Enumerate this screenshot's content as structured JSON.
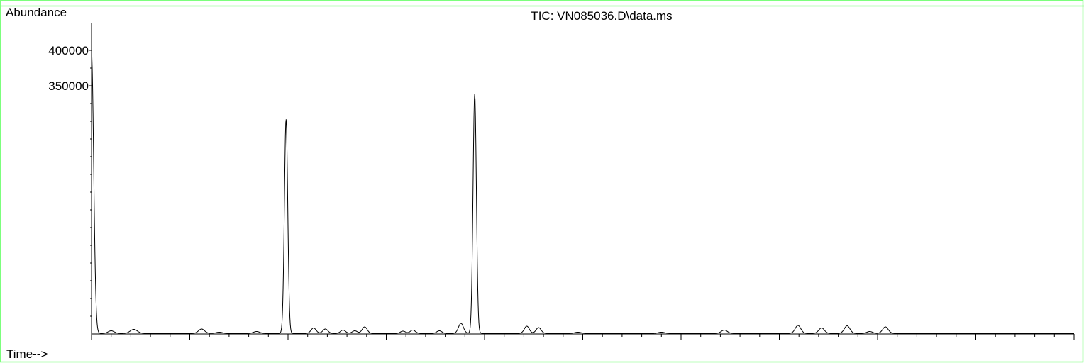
{
  "chart_data": {
    "type": "line",
    "title": "TIC: VN085036.D\\data.ms",
    "ylabel": "Abundance",
    "xlabel": "Time-->",
    "y_ticks_labeled": [
      400000,
      350000
    ],
    "ylim": [
      0,
      412000
    ],
    "xlim": [
      0,
      100
    ],
    "x_tick_labels_visible": false,
    "grid": false,
    "frame_color": "#7cff7c",
    "line_color": "#000000",
    "baseline": 1000,
    "series": [
      {
        "peaks": [
          {
            "x": 0.0,
            "y": 395000,
            "w": 0.18
          },
          {
            "x": 2.0,
            "y": 3500,
            "w": 0.3
          },
          {
            "x": 4.3,
            "y": 5500,
            "w": 0.35
          },
          {
            "x": 11.2,
            "y": 6000,
            "w": 0.3
          },
          {
            "x": 13.0,
            "y": 1500,
            "w": 0.3
          },
          {
            "x": 16.8,
            "y": 2500,
            "w": 0.3
          },
          {
            "x": 19.8,
            "y": 302000,
            "w": 0.17
          },
          {
            "x": 22.6,
            "y": 7500,
            "w": 0.25
          },
          {
            "x": 23.8,
            "y": 6000,
            "w": 0.25
          },
          {
            "x": 25.6,
            "y": 4500,
            "w": 0.25
          },
          {
            "x": 26.8,
            "y": 3500,
            "w": 0.25
          },
          {
            "x": 27.8,
            "y": 9000,
            "w": 0.25
          },
          {
            "x": 31.7,
            "y": 3000,
            "w": 0.25
          },
          {
            "x": 32.7,
            "y": 4500,
            "w": 0.25
          },
          {
            "x": 35.4,
            "y": 3500,
            "w": 0.25
          },
          {
            "x": 37.6,
            "y": 14000,
            "w": 0.25
          },
          {
            "x": 39.0,
            "y": 338000,
            "w": 0.17
          },
          {
            "x": 44.3,
            "y": 10000,
            "w": 0.25
          },
          {
            "x": 45.5,
            "y": 8000,
            "w": 0.25
          },
          {
            "x": 49.5,
            "y": 1500,
            "w": 0.3
          },
          {
            "x": 58.0,
            "y": 1500,
            "w": 0.3
          },
          {
            "x": 64.4,
            "y": 4500,
            "w": 0.3
          },
          {
            "x": 71.9,
            "y": 11000,
            "w": 0.28
          },
          {
            "x": 74.3,
            "y": 7500,
            "w": 0.28
          },
          {
            "x": 76.9,
            "y": 10500,
            "w": 0.28
          },
          {
            "x": 79.2,
            "y": 2500,
            "w": 0.28
          },
          {
            "x": 80.8,
            "y": 9000,
            "w": 0.28
          }
        ]
      }
    ]
  }
}
